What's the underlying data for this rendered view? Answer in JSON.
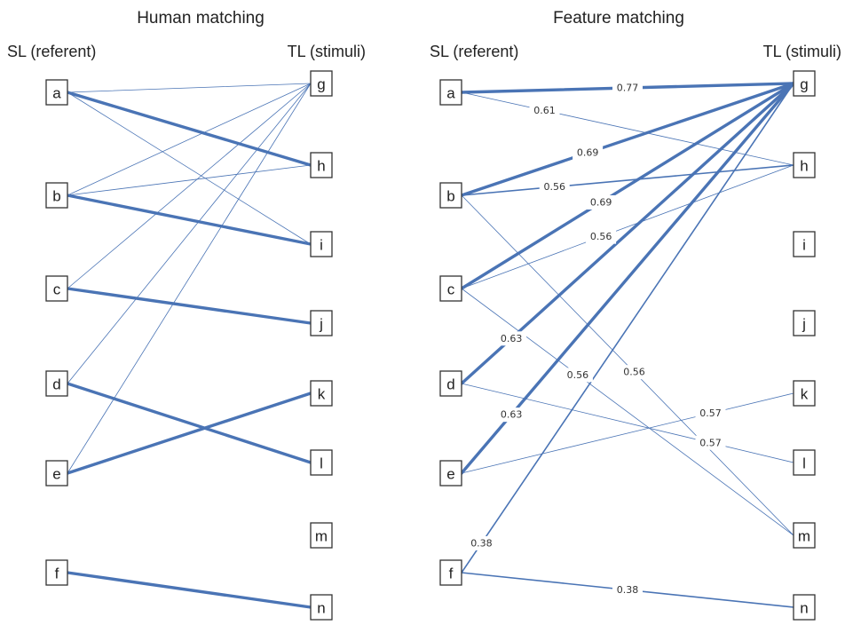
{
  "panels": [
    {
      "key": "human",
      "title": "Human matching",
      "source_header": "SL (referent)",
      "target_header": "TL (stimuli)",
      "source_nodes": [
        "a",
        "b",
        "c",
        "d",
        "e",
        "f"
      ],
      "target_nodes": [
        "g",
        "h",
        "i",
        "j",
        "k",
        "l",
        "m",
        "n"
      ],
      "edges": [
        {
          "from": "a",
          "to": "g",
          "strength": "thin"
        },
        {
          "from": "a",
          "to": "h",
          "strength": "thick"
        },
        {
          "from": "a",
          "to": "i",
          "strength": "thin"
        },
        {
          "from": "b",
          "to": "g",
          "strength": "thin"
        },
        {
          "from": "b",
          "to": "h",
          "strength": "thin"
        },
        {
          "from": "b",
          "to": "i",
          "strength": "thick"
        },
        {
          "from": "c",
          "to": "g",
          "strength": "thin"
        },
        {
          "from": "c",
          "to": "j",
          "strength": "thick"
        },
        {
          "from": "d",
          "to": "g",
          "strength": "thin"
        },
        {
          "from": "d",
          "to": "l",
          "strength": "thick"
        },
        {
          "from": "e",
          "to": "g",
          "strength": "thin"
        },
        {
          "from": "e",
          "to": "k",
          "strength": "thick"
        },
        {
          "from": "f",
          "to": "n",
          "strength": "thick"
        }
      ]
    },
    {
      "key": "feature",
      "title": "Feature matching",
      "source_header": "SL (referent)",
      "target_header": "TL (stimuli)",
      "source_nodes": [
        "a",
        "b",
        "c",
        "d",
        "e",
        "f"
      ],
      "target_nodes": [
        "g",
        "h",
        "i",
        "j",
        "k",
        "l",
        "m",
        "n"
      ],
      "edges": [
        {
          "from": "a",
          "to": "g",
          "strength": "thick",
          "label": "0.77"
        },
        {
          "from": "a",
          "to": "h",
          "strength": "thin",
          "label": "0.61"
        },
        {
          "from": "b",
          "to": "g",
          "strength": "thick",
          "label": "0.69"
        },
        {
          "from": "b",
          "to": "h",
          "strength": "medium",
          "label": "0.56"
        },
        {
          "from": "b",
          "to": "m",
          "strength": "thin",
          "label": "0.56"
        },
        {
          "from": "c",
          "to": "g",
          "strength": "thick",
          "label": "0.69"
        },
        {
          "from": "c",
          "to": "h",
          "strength": "thin",
          "label": "0.56"
        },
        {
          "from": "c",
          "to": "m",
          "strength": "thin",
          "label": "0.56"
        },
        {
          "from": "d",
          "to": "g",
          "strength": "thick",
          "label": "0.63"
        },
        {
          "from": "d",
          "to": "l",
          "strength": "thin",
          "label": "0.57"
        },
        {
          "from": "e",
          "to": "g",
          "strength": "thick",
          "label": "0.63"
        },
        {
          "from": "e",
          "to": "k",
          "strength": "thin",
          "label": "0.57"
        },
        {
          "from": "f",
          "to": "g",
          "strength": "medium",
          "label": "0.38"
        },
        {
          "from": "f",
          "to": "n",
          "strength": "medium",
          "label": "0.38"
        }
      ]
    }
  ],
  "colors": {
    "edge": "#4a74b5",
    "box_stroke": "#333333",
    "text": "#222222"
  }
}
